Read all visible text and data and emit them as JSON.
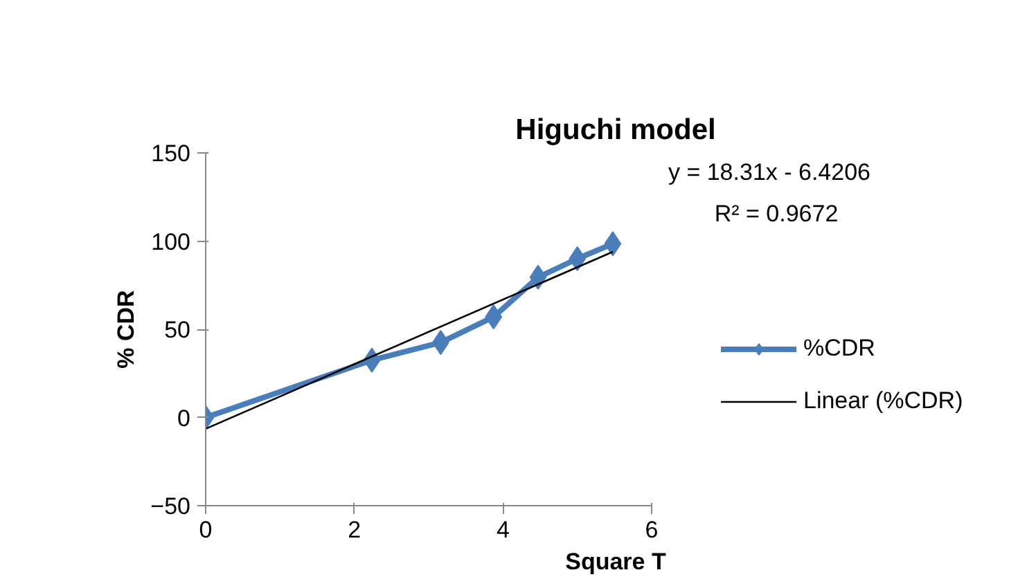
{
  "chart_data": {
    "type": "line",
    "title": "Higuchi model",
    "xlabel": "Square T",
    "ylabel": "% CDR",
    "x": [
      0,
      2.236,
      3.162,
      3.873,
      4.472,
      5,
      5.477
    ],
    "series": [
      {
        "name": "%CDR",
        "color": "#4a7ebb",
        "values": [
          0,
          32.5,
          42.5,
          57,
          79.5,
          90,
          98.5
        ],
        "marker": "diamond"
      },
      {
        "name": "Linear (%CDR)",
        "type": "line",
        "color": "#000000",
        "x": [
          0,
          5.477
        ],
        "values": [
          -6.4,
          93.9
        ],
        "marker": "none"
      }
    ],
    "annotations": [
      "y = 18.31x - 6.4206",
      "R² = 0.9672"
    ],
    "xlim": [
      0,
      6
    ],
    "xticks": [
      0,
      2,
      4,
      6
    ],
    "ylim": [
      -50,
      150
    ],
    "yticks": [
      -50,
      0,
      50,
      100,
      150
    ],
    "grid": false,
    "legend": "right"
  }
}
